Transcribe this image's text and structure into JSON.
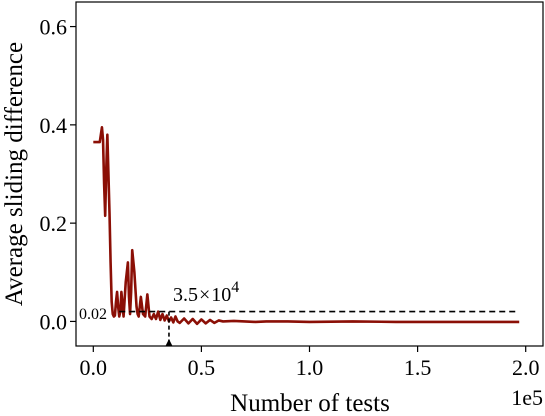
{
  "chart_data": {
    "type": "line",
    "xlabel": "Number of tests",
    "ylabel": "Average sliding difference",
    "x_offset_label": "1e5",
    "xlim": [
      -0.08,
      2.08
    ],
    "ylim": [
      -0.05,
      0.65
    ],
    "x_ticks": [
      0.0,
      0.5,
      1.0,
      1.5,
      2.0
    ],
    "x_tick_labels": [
      "0.0",
      "0.5",
      "1.0",
      "1.5",
      "2.0"
    ],
    "y_ticks": [
      0.0,
      0.2,
      0.4,
      0.6
    ],
    "y_tick_labels": [
      "0.0",
      "0.2",
      "0.4",
      "0.6"
    ],
    "grid": false,
    "series": [
      {
        "color": "#8b0f06",
        "x": [
          0.0,
          0.03,
          0.04,
          0.045,
          0.05,
          0.055,
          0.06,
          0.065,
          0.07,
          0.075,
          0.08,
          0.085,
          0.09,
          0.095,
          0.1,
          0.105,
          0.11,
          0.115,
          0.12,
          0.125,
          0.13,
          0.14,
          0.15,
          0.16,
          0.165,
          0.17,
          0.175,
          0.18,
          0.19,
          0.2,
          0.205,
          0.21,
          0.22,
          0.23,
          0.24,
          0.25,
          0.26,
          0.27,
          0.28,
          0.29,
          0.3,
          0.31,
          0.32,
          0.33,
          0.34,
          0.35,
          0.36,
          0.37,
          0.38,
          0.39,
          0.4,
          0.42,
          0.44,
          0.46,
          0.48,
          0.5,
          0.52,
          0.54,
          0.56,
          0.58,
          0.6,
          0.65,
          0.7,
          0.75,
          0.8,
          0.9,
          1.0,
          1.2,
          1.4,
          1.6,
          1.8,
          1.97
        ],
        "y": [
          0.365,
          0.365,
          0.395,
          0.37,
          0.28,
          0.215,
          0.31,
          0.38,
          0.3,
          0.22,
          0.12,
          0.04,
          0.015,
          0.01,
          0.012,
          0.04,
          0.06,
          0.03,
          0.01,
          0.02,
          0.06,
          0.01,
          0.08,
          0.12,
          0.05,
          0.015,
          0.06,
          0.145,
          0.1,
          0.03,
          0.015,
          0.01,
          0.05,
          0.015,
          0.01,
          0.055,
          0.01,
          0.005,
          0.015,
          0.005,
          0.02,
          0.003,
          0.015,
          0.002,
          0.012,
          0.0,
          0.008,
          -0.002,
          0.01,
          0.0,
          -0.003,
          0.006,
          -0.004,
          0.005,
          -0.005,
          0.004,
          -0.004,
          0.003,
          -0.003,
          0.002,
          0.0,
          0.001,
          0.0,
          -0.001,
          0.0,
          0.0,
          -0.001,
          0.0,
          -0.001,
          -0.001,
          -0.001,
          -0.001
        ]
      }
    ],
    "threshold": {
      "y": 0.02,
      "label": "0.02",
      "x_end": 1.97
    },
    "marker": {
      "x": 0.35,
      "label_base": "3.5",
      "label_times": "×",
      "label_pow_base": "10",
      "label_exp": "4"
    }
  }
}
